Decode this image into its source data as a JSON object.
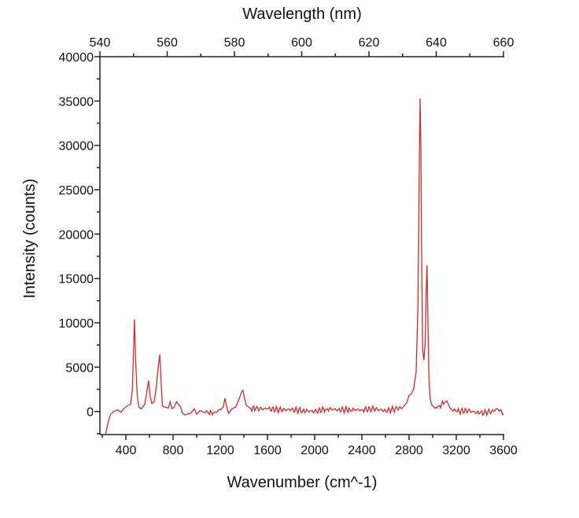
{
  "chart_data": {
    "type": "line",
    "title": "",
    "xlabel": "Wavenumber (cm^-1)",
    "ylabel": "Intensity (counts)",
    "x2label": "Wavelength (nm)",
    "xlim": [
      180,
      3600
    ],
    "ylim": [
      -2600,
      40000
    ],
    "x2lim": [
      540,
      660
    ],
    "xticks": [
      400,
      800,
      1200,
      1600,
      2000,
      2400,
      2800,
      3200,
      3600
    ],
    "yticks": [
      0,
      5000,
      10000,
      15000,
      20000,
      25000,
      30000,
      35000,
      40000
    ],
    "x2ticks": [
      540,
      560,
      580,
      600,
      620,
      640,
      660
    ],
    "line_color": "#d42a2a",
    "series": [
      {
        "name": "spectrum",
        "x": [
          230,
          250,
          270,
          300,
          330,
          360,
          380,
          400,
          420,
          440,
          455,
          465,
          473,
          482,
          495,
          510,
          530,
          560,
          580,
          593,
          605,
          620,
          640,
          660,
          675,
          687,
          698,
          710,
          730,
          760,
          775,
          790,
          810,
          830,
          845,
          860,
          880,
          900,
          920,
          950,
          980,
          1000,
          1030,
          1060,
          1100,
          1150,
          1200,
          1225,
          1240,
          1255,
          1270,
          1300,
          1330,
          1360,
          1380,
          1392,
          1405,
          1420,
          1450,
          1500,
          1600,
          1700,
          1800,
          1900,
          2000,
          2100,
          2200,
          2300,
          2400,
          2500,
          2600,
          2700,
          2750,
          2780,
          2800,
          2820,
          2840,
          2860,
          2875,
          2885,
          2893,
          2900,
          2908,
          2915,
          2925,
          2935,
          2945,
          2952,
          2960,
          2968,
          2978,
          2990,
          3010,
          3050,
          3100,
          3120,
          3150,
          3200,
          3300,
          3400,
          3500,
          3550,
          3600
        ],
        "y": [
          -2500,
          -1200,
          -300,
          0,
          200,
          -100,
          300,
          500,
          700,
          800,
          2500,
          7000,
          10400,
          6000,
          2000,
          500,
          300,
          800,
          2400,
          3500,
          1800,
          900,
          1100,
          3000,
          5200,
          6400,
          3500,
          600,
          500,
          400,
          1100,
          300,
          500,
          1100,
          800,
          600,
          -200,
          -400,
          -300,
          -200,
          300,
          -300,
          100,
          -100,
          -200,
          -100,
          200,
          500,
          1500,
          500,
          -200,
          300,
          500,
          1400,
          2200,
          2400,
          1500,
          700,
          400,
          300,
          300,
          200,
          200,
          100,
          0,
          300,
          200,
          200,
          200,
          300,
          100,
          300,
          500,
          1000,
          1800,
          2000,
          2600,
          4500,
          12000,
          26000,
          35300,
          30000,
          15000,
          7000,
          5800,
          7500,
          14000,
          16500,
          10000,
          4000,
          1500,
          800,
          500,
          600,
          1000,
          1200,
          300,
          0,
          100,
          -200,
          0,
          300,
          -200
        ]
      }
    ]
  }
}
